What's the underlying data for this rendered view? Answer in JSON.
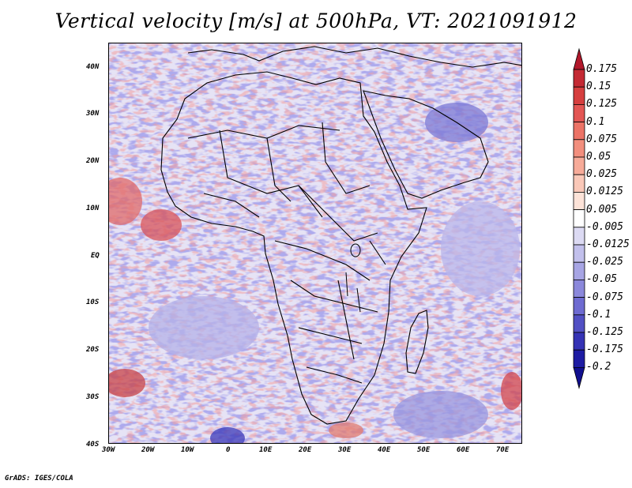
{
  "title": "Vertical velocity [m/s] at 500hPa, VT: 2021091912",
  "credit": "GrADS: IGES/COLA",
  "map": {
    "field": "vertical velocity",
    "level": "500hPa",
    "valid_time": "2021091912",
    "units": "m/s",
    "lon_ticks": [
      "30W",
      "20W",
      "10W",
      "0",
      "10E",
      "20E",
      "30E",
      "40E",
      "50E",
      "60E",
      "70E"
    ],
    "lat_ticks": [
      "40N",
      "30N",
      "20N",
      "10N",
      "EQ",
      "10S",
      "20S",
      "30S",
      "40S"
    ]
  },
  "colorbar": {
    "levels": [
      "0.175",
      "0.15",
      "0.125",
      "0.1",
      "0.075",
      "0.05",
      "0.025",
      "0.0125",
      "0.005",
      "-0.005",
      "-0.0125",
      "-0.025",
      "-0.05",
      "-0.075",
      "-0.1",
      "-0.125",
      "-0.175",
      "-0.2"
    ],
    "colors": [
      "#b2182b",
      "#c42a34",
      "#d63f3f",
      "#e35654",
      "#ec7366",
      "#f28f7e",
      "#f7ab99",
      "#fac8b8",
      "#fde3d8",
      "#ffffff",
      "#dcdaf3",
      "#c2c0ec",
      "#a7a5e4",
      "#8b88db",
      "#6e6bd1",
      "#5250c4",
      "#3533b5",
      "#1e1ca3",
      "#110f8f"
    ]
  }
}
